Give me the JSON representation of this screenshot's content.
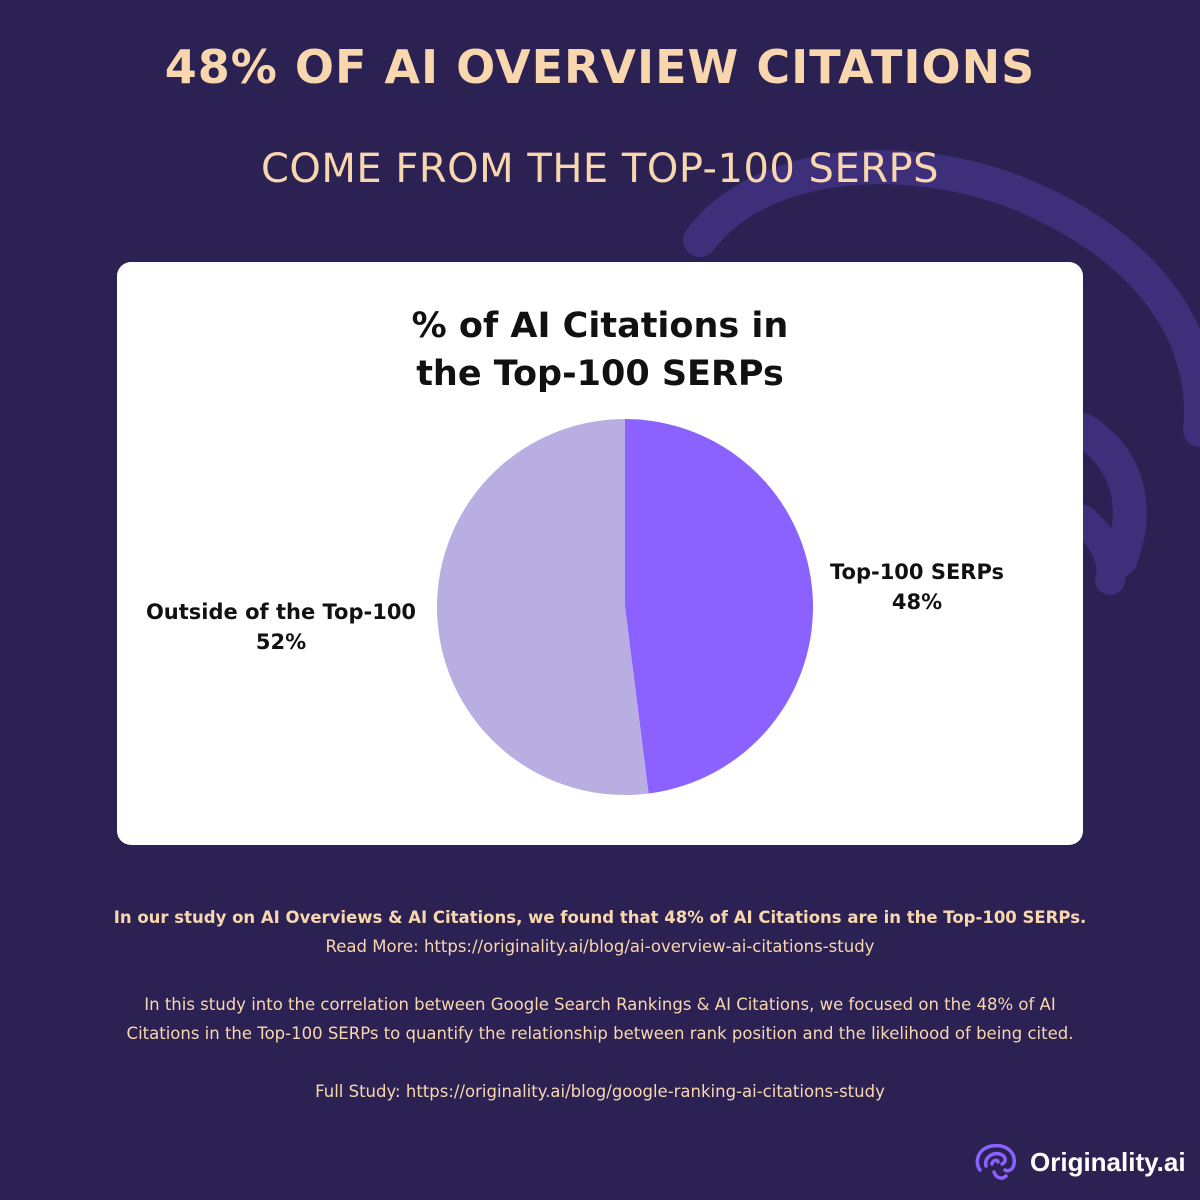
{
  "header": {
    "headline": "48% OF AI OVERVIEW CITATIONS",
    "subheadline": "COME FROM THE TOP-100 SERPS"
  },
  "chart_data": {
    "type": "pie",
    "title_lines": [
      "% of AI Citations in",
      "the Top-100 SERPs"
    ],
    "slices": [
      {
        "label": "Top-100 SERPs",
        "value": 48,
        "value_label": "48%",
        "color": "#8b62ff"
      },
      {
        "label": "Outside of the Top-100",
        "value": 52,
        "value_label": "52%",
        "color": "#b8aee2"
      }
    ],
    "background": "#ffffff"
  },
  "footer": {
    "line1": "In our study on AI Overviews & AI Citations, we found that 48% of AI Citations are in the Top-100 SERPs.",
    "line2": "Read More: https://originality.ai/blog/ai-overview-ai-citations-study",
    "line3": "In this study into the correlation between Google Search Rankings & AI Citations, we focused on the 48% of AI",
    "line4": "Citations in the Top-100 SERPs to quantify the relationship between rank position and the likelihood of being cited.",
    "line5": "Full Study: https://originality.ai/blog/google-ranking-ai-citations-study"
  },
  "brand": {
    "logo_text": "Originality.ai",
    "logo_icon": "brain-icon"
  },
  "colors": {
    "background": "#2b2152",
    "accent_text": "#f9d7ae",
    "decoration": "#3e2f7a"
  }
}
